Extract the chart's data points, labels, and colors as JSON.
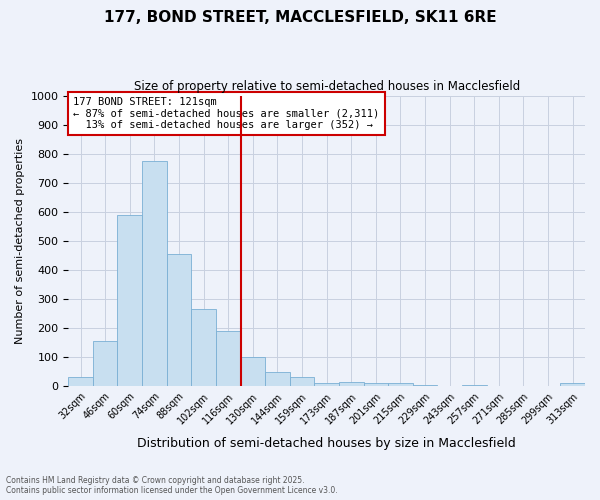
{
  "title": "177, BOND STREET, MACCLESFIELD, SK11 6RE",
  "subtitle": "Size of property relative to semi-detached houses in Macclesfield",
  "xlabel": "Distribution of semi-detached houses by size in Macclesfield",
  "ylabel": "Number of semi-detached properties",
  "bar_labels": [
    "32sqm",
    "46sqm",
    "60sqm",
    "74sqm",
    "88sqm",
    "102sqm",
    "116sqm",
    "130sqm",
    "144sqm",
    "159sqm",
    "173sqm",
    "187sqm",
    "201sqm",
    "215sqm",
    "229sqm",
    "243sqm",
    "257sqm",
    "271sqm",
    "285sqm",
    "299sqm",
    "313sqm"
  ],
  "bar_values": [
    30,
    155,
    590,
    775,
    455,
    265,
    190,
    100,
    50,
    30,
    10,
    15,
    10,
    10,
    5,
    0,
    5,
    0,
    0,
    0,
    10
  ],
  "bar_color": "#c8dff0",
  "bar_edge_color": "#7aafd4",
  "property_size": "121sqm",
  "pct_smaller": 87,
  "n_smaller": 2311,
  "pct_larger": 13,
  "n_larger": 352,
  "ylim": [
    0,
    1000
  ],
  "yticks": [
    0,
    100,
    200,
    300,
    400,
    500,
    600,
    700,
    800,
    900,
    1000
  ],
  "annotation_box_color": "#ffffff",
  "annotation_box_edge": "#cc0000",
  "vline_color": "#cc0000",
  "grid_color": "#c8d0e0",
  "bg_color": "#eef2fa",
  "footer_line1": "Contains HM Land Registry data © Crown copyright and database right 2025.",
  "footer_line2": "Contains public sector information licensed under the Open Government Licence v3.0.",
  "vline_index": 6
}
